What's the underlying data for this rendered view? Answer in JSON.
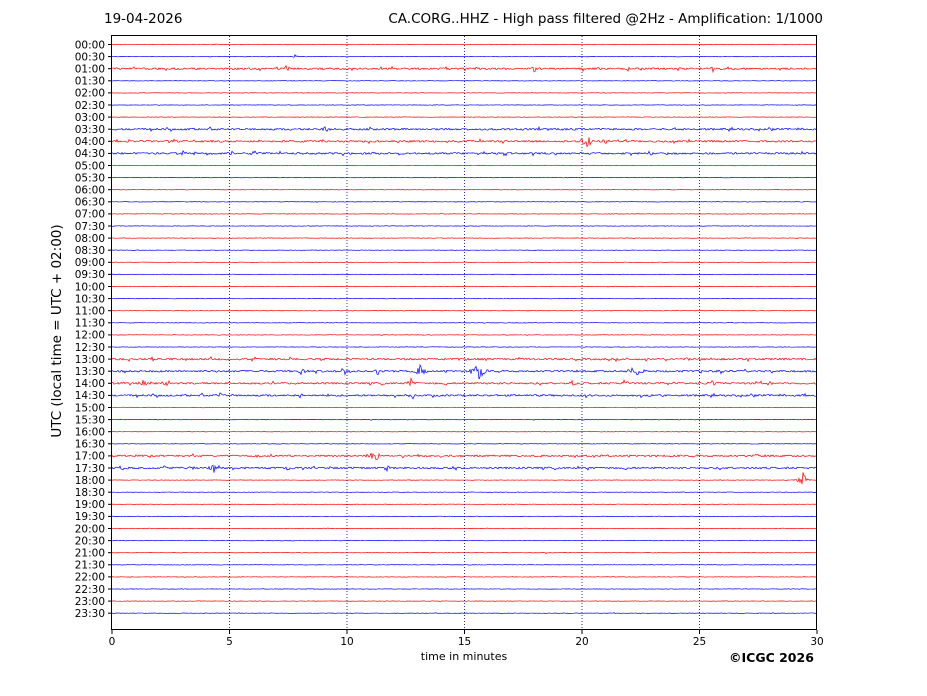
{
  "header": {
    "date": "19-04-2026",
    "title": "CA.CORG..HHZ - High pass filtered @2Hz - Amplification: 1/1000"
  },
  "footer": {
    "copyright": "©ICGC 2026"
  },
  "chart_data": {
    "type": "line",
    "subtype": "helicorder",
    "ylabel": "UTC (local time = UTC + 02:00)",
    "xlabel": "time in minutes",
    "xlim": [
      0,
      30
    ],
    "xticks": [
      0,
      5,
      10,
      15,
      20,
      25,
      30
    ],
    "vertical_gridlines_minutes": [
      5,
      10,
      15,
      20,
      25
    ],
    "rows": [
      "00:00",
      "00:30",
      "01:00",
      "01:30",
      "02:00",
      "02:30",
      "03:00",
      "03:30",
      "04:00",
      "04:30",
      "05:00",
      "05:30",
      "06:00",
      "06:30",
      "07:00",
      "07:30",
      "08:00",
      "08:30",
      "09:00",
      "09:30",
      "10:00",
      "10:30",
      "11:00",
      "11:30",
      "12:00",
      "12:30",
      "13:00",
      "13:30",
      "14:00",
      "14:30",
      "15:00",
      "15:30",
      "16:00",
      "16:30",
      "17:00",
      "17:30",
      "18:00",
      "18:30",
      "19:00",
      "19:30",
      "20:00",
      "20:30",
      "21:00",
      "21:30",
      "22:00",
      "22:30",
      "23:00",
      "23:30"
    ],
    "row_colors": [
      "#ff0000",
      "#0000ff"
    ],
    "events": [
      {
        "row": "00:30",
        "minute": 7.8,
        "amplitude": 0.15
      },
      {
        "row": "01:00",
        "minute": 7.4,
        "amplitude": 0.25
      },
      {
        "row": "01:00",
        "minute": 18.0,
        "amplitude": 0.2
      },
      {
        "row": "01:00",
        "minute": 20.0,
        "amplitude": 0.2
      },
      {
        "row": "01:00",
        "minute": 22.0,
        "amplitude": 0.2
      },
      {
        "row": "01:00",
        "minute": 24.2,
        "amplitude": 0.25
      },
      {
        "row": "01:00",
        "minute": 25.6,
        "amplitude": 0.2
      },
      {
        "row": "03:30",
        "minute": 3.3,
        "amplitude": 0.2
      },
      {
        "row": "03:30",
        "minute": 7.7,
        "amplitude": 0.2
      },
      {
        "row": "03:30",
        "minute": 9.1,
        "amplitude": 0.35
      },
      {
        "row": "04:00",
        "minute": 20.2,
        "amplitude": 0.6
      },
      {
        "row": "04:00",
        "minute": 21.0,
        "amplitude": 0.2
      },
      {
        "row": "04:00",
        "minute": 22.0,
        "amplitude": 0.15
      },
      {
        "row": "04:30",
        "minute": 3.0,
        "amplitude": 0.2
      },
      {
        "row": "04:30",
        "minute": 3.5,
        "amplitude": 0.2
      },
      {
        "row": "04:30",
        "minute": 5.1,
        "amplitude": 0.3
      },
      {
        "row": "04:30",
        "minute": 6.0,
        "amplitude": 0.25
      },
      {
        "row": "13:00",
        "minute": 14.8,
        "amplitude": 0.15
      },
      {
        "row": "13:00",
        "minute": 27.0,
        "amplitude": 0.15
      },
      {
        "row": "13:30",
        "minute": 8.1,
        "amplitude": 0.45
      },
      {
        "row": "13:30",
        "minute": 9.9,
        "amplitude": 0.3
      },
      {
        "row": "13:30",
        "minute": 11.3,
        "amplitude": 0.3
      },
      {
        "row": "13:30",
        "minute": 13.1,
        "amplitude": 0.5
      },
      {
        "row": "13:30",
        "minute": 15.6,
        "amplitude": 0.8
      },
      {
        "row": "13:30",
        "minute": 22.3,
        "amplitude": 0.7
      },
      {
        "row": "13:30",
        "minute": 25.9,
        "amplitude": 0.3
      },
      {
        "row": "14:00",
        "minute": 1.3,
        "amplitude": 0.25
      },
      {
        "row": "14:00",
        "minute": 2.2,
        "amplitude": 0.25
      },
      {
        "row": "14:00",
        "minute": 12.7,
        "amplitude": 0.35
      },
      {
        "row": "14:00",
        "minute": 19.6,
        "amplitude": 0.3
      },
      {
        "row": "14:00",
        "minute": 21.8,
        "amplitude": 0.25
      },
      {
        "row": "14:00",
        "minute": 25.6,
        "amplitude": 0.35
      },
      {
        "row": "14:00",
        "minute": 28.0,
        "amplitude": 0.3
      },
      {
        "row": "14:30",
        "minute": 4.6,
        "amplitude": 0.2
      },
      {
        "row": "14:30",
        "minute": 8.0,
        "amplitude": 0.2
      },
      {
        "row": "14:30",
        "minute": 12.8,
        "amplitude": 0.2
      },
      {
        "row": "14:30",
        "minute": 23.5,
        "amplitude": 0.15
      },
      {
        "row": "17:00",
        "minute": 11.2,
        "amplitude": 0.7
      },
      {
        "row": "17:00",
        "minute": 27.4,
        "amplitude": 0.2
      },
      {
        "row": "17:30",
        "minute": 0.5,
        "amplitude": 0.3
      },
      {
        "row": "17:30",
        "minute": 2.2,
        "amplitude": 0.2
      },
      {
        "row": "17:30",
        "minute": 3.4,
        "amplitude": 0.25
      },
      {
        "row": "17:30",
        "minute": 4.3,
        "amplitude": 0.3
      },
      {
        "row": "17:30",
        "minute": 7.5,
        "amplitude": 0.25
      },
      {
        "row": "17:30",
        "minute": 11.7,
        "amplitude": 0.25
      },
      {
        "row": "17:30",
        "minute": 14.5,
        "amplitude": 0.2
      },
      {
        "row": "18:00",
        "minute": 29.4,
        "amplitude": 0.55
      },
      {
        "row": "21:00",
        "minute": 18.5,
        "amplitude": 0.1
      }
    ],
    "noisy_rows": [
      "01:00",
      "03:30",
      "04:00",
      "04:30",
      "13:00",
      "13:30",
      "14:00",
      "14:30",
      "17:00",
      "17:30"
    ]
  }
}
